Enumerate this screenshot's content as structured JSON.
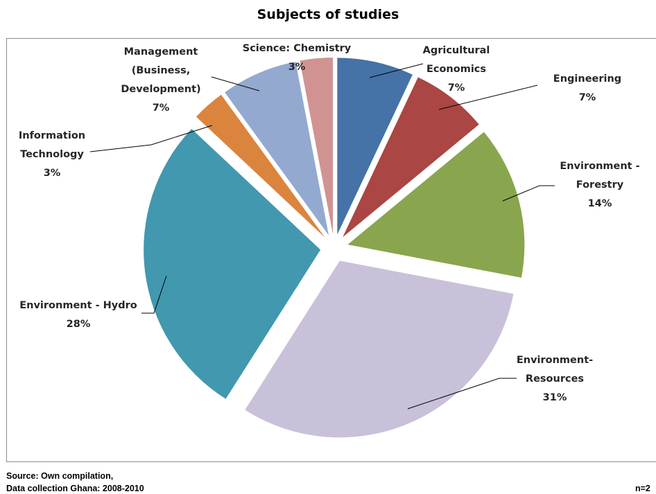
{
  "chart_data": {
    "type": "pie",
    "title": "Subjects of studies",
    "slices": [
      {
        "lines": [
          "Agricultural",
          "Economics"
        ],
        "pct_label": "7%",
        "value": 7,
        "color": "#4572A7"
      },
      {
        "lines": [
          "Engineering"
        ],
        "pct_label": "7%",
        "value": 7,
        "color": "#AA4643"
      },
      {
        "lines": [
          "Environment -",
          "Forestry"
        ],
        "pct_label": "14%",
        "value": 14,
        "color": "#89A54E"
      },
      {
        "lines": [
          "Environment-",
          "Resources"
        ],
        "pct_label": "31%",
        "value": 31,
        "color": "#C9C0DA"
      },
      {
        "lines": [
          "Environment - Hydro"
        ],
        "pct_label": "28%",
        "value": 28,
        "color": "#4198AF"
      },
      {
        "lines": [
          "Information",
          "Technology"
        ],
        "pct_label": "3%",
        "value": 3,
        "color": "#DB843D"
      },
      {
        "lines": [
          "Management",
          "(Business,",
          "Development)"
        ],
        "pct_label": "7%",
        "value": 7,
        "color": "#93A9CF"
      },
      {
        "lines": [
          "Science: Chemistry"
        ],
        "pct_label": "3%",
        "value": 3,
        "color": "#D09392"
      }
    ]
  },
  "footer": {
    "source_line1": "Source: Own compilation,",
    "source_line2": "Data collection Ghana: 2008-2010",
    "sample_size": "n=2"
  }
}
